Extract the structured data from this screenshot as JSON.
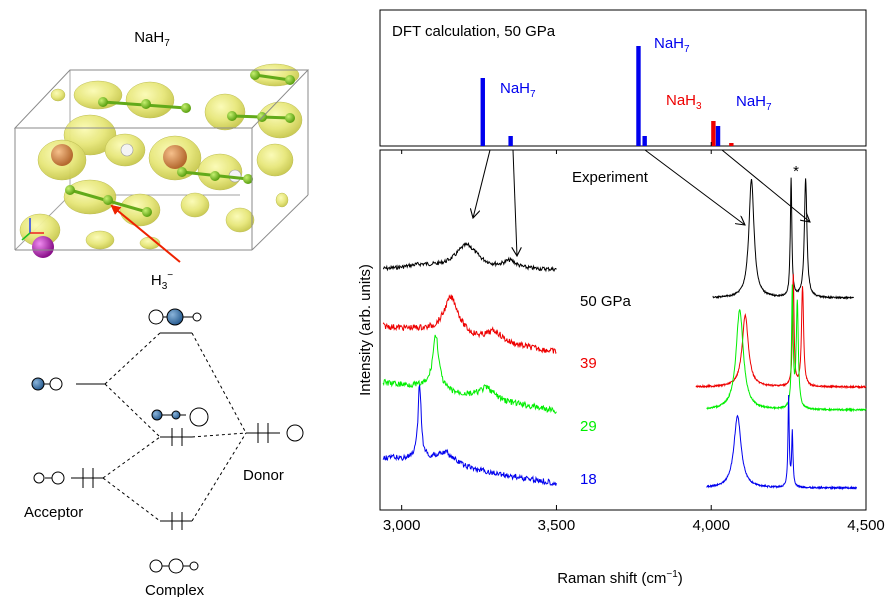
{
  "structure": {
    "title": "NaH",
    "title_sub": "7",
    "h3_label": "H",
    "h3_sub": "3",
    "h3_sup": "−"
  },
  "mo_diagram": {
    "acceptor": "Acceptor",
    "donor": "Donor",
    "complex": "Complex"
  },
  "chart_data": [
    {
      "type": "bar",
      "title": "DFT calculation, 50 GPa",
      "xlim": [
        2930,
        4500
      ],
      "peaks": [
        {
          "x": 3262,
          "height": 0.68,
          "color": "#0000ee"
        },
        {
          "x": 3352,
          "height": 0.1,
          "color": "#0000ee"
        },
        {
          "x": 3765,
          "height": 1.0,
          "color": "#0000ee"
        },
        {
          "x": 3785,
          "height": 0.1,
          "color": "#0000ee"
        },
        {
          "x": 4007,
          "height": 0.25,
          "color": "#ee0000"
        },
        {
          "x": 4022,
          "height": 0.2,
          "color": "#0000ee"
        },
        {
          "x": 4065,
          "height": 0.03,
          "color": "#ee0000"
        }
      ],
      "annotations": [
        {
          "label": "NaH",
          "sub": "7",
          "color": "#0000ee",
          "x": 3262
        },
        {
          "label": "NaH",
          "sub": "7",
          "color": "#0000ee",
          "x": 3765
        },
        {
          "label": "NaH",
          "sub": "3",
          "color": "#ee0000",
          "x": 4007
        },
        {
          "label": "NaH",
          "sub": "7",
          "color": "#0000ee",
          "x": 4050
        }
      ]
    },
    {
      "type": "line",
      "annotation": "Experiment",
      "star": "*",
      "xlabel": "Raman shift (cm",
      "xlabel_sup": "−1",
      "xlabel_end": ")",
      "ylabel": "Intensity (arb. units)",
      "xlim": [
        2930,
        4500
      ],
      "xticks": [
        3000,
        3500,
        4000,
        4500
      ],
      "xtick_labels": [
        "3,000",
        "3,500",
        "4,000",
        "4,500"
      ],
      "series": [
        {
          "name": "50 GPa",
          "color": "#000000",
          "low": [
            {
              "x": 3210,
              "w": 45,
              "h": 0.55
            },
            {
              "x": 3350,
              "w": 25,
              "h": 0.17
            }
          ],
          "high": [
            {
              "x": 4130,
              "w": 10,
              "h": 1.0
            },
            {
              "x": 4258,
              "w": 3,
              "h": 1.0
            },
            {
              "x": 4305,
              "w": 5,
              "h": 1.0
            }
          ]
        },
        {
          "name": "39",
          "color": "#ee0000",
          "low": [
            {
              "x": 3160,
              "w": 30,
              "h": 0.8
            },
            {
              "x": 3300,
              "w": 30,
              "h": 0.22
            }
          ],
          "high": [
            {
              "x": 4110,
              "w": 12,
              "h": 0.65
            },
            {
              "x": 4265,
              "w": 3,
              "h": 1.0
            },
            {
              "x": 4295,
              "w": 4,
              "h": 0.9
            }
          ]
        },
        {
          "name": "29",
          "color": "#00ee00",
          "low": [
            {
              "x": 3110,
              "w": 12,
              "h": 0.95
            },
            {
              "x": 3275,
              "w": 30,
              "h": 0.2
            }
          ],
          "high": [
            {
              "x": 4092,
              "w": 14,
              "h": 0.85
            },
            {
              "x": 4262,
              "w": 3,
              "h": 1.0
            },
            {
              "x": 4278,
              "w": 4,
              "h": 0.9
            }
          ]
        },
        {
          "name": "18",
          "color": "#0000ee",
          "low": [
            {
              "x": 3058,
              "w": 6,
              "h": 1.0
            },
            {
              "x": 3140,
              "w": 40,
              "h": 0.18
            }
          ],
          "high": [
            {
              "x": 4085,
              "w": 14,
              "h": 0.8
            },
            {
              "x": 4250,
              "w": 2.5,
              "h": 1.0
            },
            {
              "x": 4262,
              "w": 2.5,
              "h": 0.6
            }
          ]
        }
      ]
    }
  ]
}
